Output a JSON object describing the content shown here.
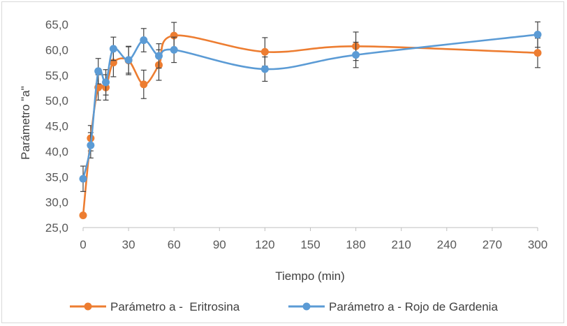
{
  "chart_data": {
    "type": "line",
    "smooth": true,
    "title": "",
    "xlabel": "Tiempo (min)",
    "ylabel": "Parámetro \"a\"",
    "xlim": [
      0,
      300
    ],
    "ylim": [
      25,
      65
    ],
    "x_ticks": [
      0,
      30,
      60,
      90,
      120,
      150,
      180,
      210,
      240,
      270,
      300
    ],
    "x_tick_labels": [
      "0",
      "30",
      "60",
      "90",
      "120",
      "150",
      "180",
      "210",
      "240",
      "270",
      "300"
    ],
    "y_ticks": [
      25,
      30,
      35,
      40,
      45,
      50,
      55,
      60,
      65
    ],
    "y_tick_labels": [
      "25,0",
      "30,0",
      "35,0",
      "40,0",
      "45,0",
      "50,0",
      "55,0",
      "60,0",
      "65,0"
    ],
    "grid": false,
    "legend_position": "bottom",
    "error_bars": true,
    "series": [
      {
        "name": "Parámetro a -  Eritrosina",
        "color": "#ED7D31",
        "points": [
          {
            "x": 0,
            "y": 27.4,
            "err": 0
          },
          {
            "x": 5,
            "y": 42.6,
            "err": 2.5
          },
          {
            "x": 10,
            "y": 52.6,
            "err": 2.5
          },
          {
            "x": 15,
            "y": 52.6,
            "err": 2.5
          },
          {
            "x": 20,
            "y": 57.5,
            "err": 2.8
          },
          {
            "x": 30,
            "y": 57.9,
            "err": 2.8
          },
          {
            "x": 40,
            "y": 53.2,
            "err": 2.8
          },
          {
            "x": 50,
            "y": 57.0,
            "err": 3.0
          },
          {
            "x": 60,
            "y": 62.8,
            "err": 2.6
          },
          {
            "x": 120,
            "y": 59.6,
            "err": 2.8
          },
          {
            "x": 180,
            "y": 60.7,
            "err": 2.8
          },
          {
            "x": 300,
            "y": 59.4,
            "err": 2.9
          }
        ]
      },
      {
        "name": "Parámetro a - Rojo de Gardenia",
        "color": "#5B9BD5",
        "points": [
          {
            "x": 0,
            "y": 34.6,
            "err": 2.5
          },
          {
            "x": 5,
            "y": 41.2,
            "err": 2.5
          },
          {
            "x": 10,
            "y": 55.8,
            "err": 2.5
          },
          {
            "x": 15,
            "y": 53.6,
            "err": 2.5
          },
          {
            "x": 20,
            "y": 60.2,
            "err": 2.3
          },
          {
            "x": 30,
            "y": 58.0,
            "err": 2.6
          },
          {
            "x": 40,
            "y": 61.9,
            "err": 2.3
          },
          {
            "x": 50,
            "y": 58.8,
            "err": 2.4
          },
          {
            "x": 60,
            "y": 60.0,
            "err": 2.5
          },
          {
            "x": 120,
            "y": 56.2,
            "err": 2.4
          },
          {
            "x": 180,
            "y": 59.0,
            "err": 2.5
          },
          {
            "x": 300,
            "y": 63.0,
            "err": 2.5
          }
        ]
      }
    ]
  }
}
